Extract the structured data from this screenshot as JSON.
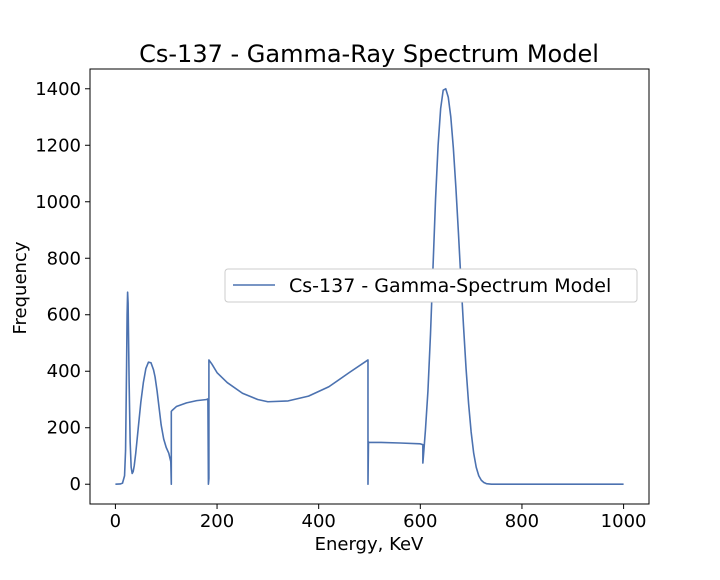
{
  "chart_data": {
    "type": "line",
    "title": "Cs-137 - Gamma-Ray Spectrum Model",
    "xlabel": "Energy, KeV",
    "ylabel": "Frequency",
    "xlim": [
      -50,
      1050
    ],
    "ylim": [
      -70,
      1470
    ],
    "xticks": [
      0,
      200,
      400,
      600,
      800,
      1000
    ],
    "yticks": [
      0,
      200,
      400,
      600,
      800,
      1000,
      1200,
      1400
    ],
    "grid": false,
    "legend_position": "center-right",
    "series": [
      {
        "name": "Cs-137 - Gamma-Spectrum Model",
        "color": "#4c72b0",
        "x": [
          0,
          10,
          14,
          18,
          20,
          22,
          23,
          24,
          25,
          27,
          29,
          31,
          33,
          35,
          37,
          40,
          45,
          50,
          55,
          60,
          65,
          70,
          75,
          78,
          82,
          86,
          90,
          95,
          100,
          105,
          109,
          110,
          110,
          112,
          120,
          140,
          160,
          180,
          181,
          182,
          183,
          184,
          184,
          190,
          200,
          220,
          250,
          280,
          300,
          340,
          380,
          420,
          460,
          497,
          497,
          498,
          498,
          520,
          560,
          600,
          605,
          605,
          607,
          610,
          615,
          620,
          625,
          630,
          635,
          640,
          645,
          650,
          655,
          660,
          665,
          670,
          675,
          680,
          685,
          690,
          695,
          700,
          705,
          710,
          715,
          720,
          725,
          730,
          740,
          760,
          780,
          800,
          850,
          900,
          950,
          1000
        ],
        "y": [
          0,
          1,
          4,
          30,
          120,
          420,
          600,
          680,
          640,
          360,
          150,
          60,
          38,
          45,
          65,
          110,
          200,
          290,
          360,
          410,
          432,
          430,
          405,
          380,
          330,
          270,
          210,
          160,
          130,
          110,
          80,
          0,
          258,
          262,
          275,
          288,
          296,
          300,
          302,
          300,
          0,
          20,
          440,
          425,
          395,
          360,
          322,
          300,
          292,
          295,
          312,
          345,
          395,
          440,
          0,
          150,
          148,
          148,
          146,
          143,
          140,
          75,
          120,
          190,
          330,
          530,
          770,
          1010,
          1200,
          1330,
          1395,
          1400,
          1370,
          1300,
          1190,
          1050,
          890,
          720,
          560,
          410,
          285,
          185,
          110,
          60,
          30,
          14,
          6,
          2,
          0,
          0,
          0,
          0,
          0,
          0,
          0,
          0
        ]
      }
    ]
  }
}
